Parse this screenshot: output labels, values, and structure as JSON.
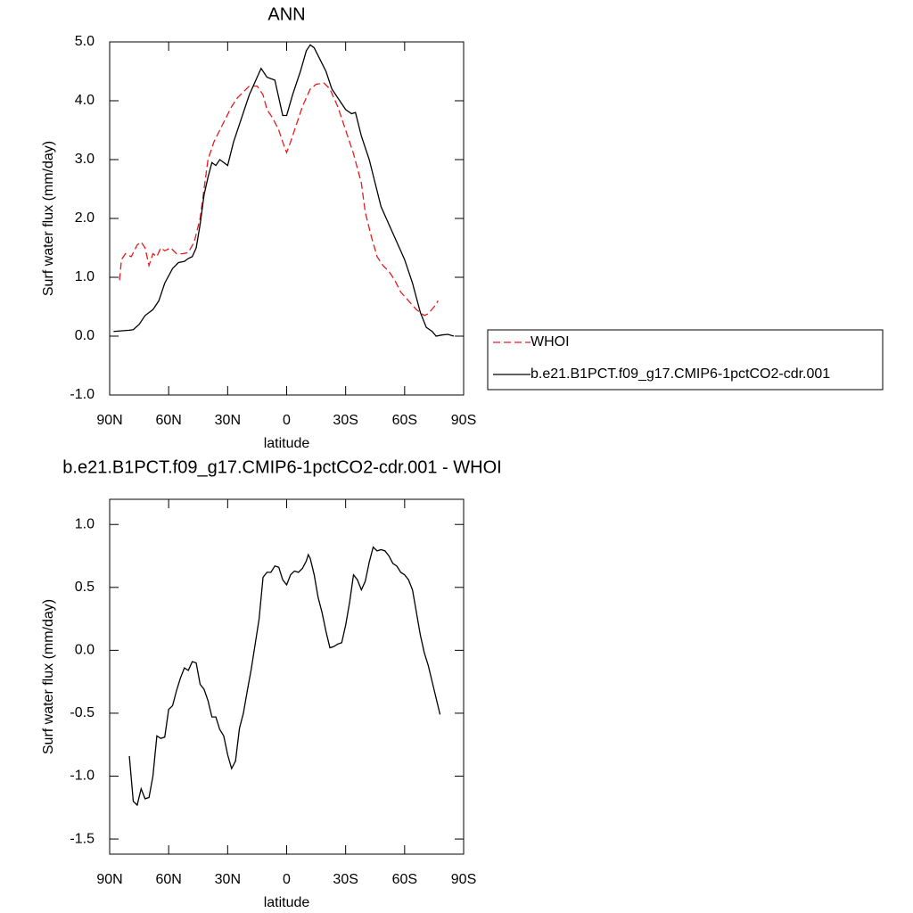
{
  "chart_data": [
    {
      "type": "line",
      "title": "ANN",
      "xlabel": "latitude",
      "ylabel": "Surf water flux (mm/day)",
      "xlim": [
        90,
        -90
      ],
      "xticks": [
        {
          "value": 90,
          "label": "90N"
        },
        {
          "value": 60,
          "label": "60N"
        },
        {
          "value": 30,
          "label": "30N"
        },
        0,
        {
          "value": -30,
          "label": "30S"
        },
        {
          "value": -60,
          "label": "60S"
        },
        {
          "value": -90,
          "label": "90S"
        }
      ],
      "ylim": [
        -1,
        5
      ],
      "yticks": [
        {
          "value": 5,
          "label": "5.0"
        },
        {
          "value": 4,
          "label": "4.0"
        },
        {
          "value": 3,
          "label": "3.0"
        },
        {
          "value": 2,
          "label": "2.0"
        },
        {
          "value": 1,
          "label": "1.0"
        },
        {
          "value": 0,
          "label": "0.0"
        },
        {
          "value": -1,
          "label": "-1.0"
        }
      ],
      "legend": "outside-right",
      "series": [
        {
          "name": "WHOI",
          "color": "#e41a1c",
          "line_style": "dashed",
          "x": [
            85,
            84,
            82,
            79,
            76,
            74,
            72,
            70,
            68,
            66,
            64,
            62,
            59,
            56,
            53,
            50,
            47,
            44,
            42,
            40,
            37,
            34,
            31,
            28,
            25,
            22,
            19,
            15,
            12,
            10,
            7,
            4,
            1,
            0,
            -2,
            -5,
            -8,
            -12,
            -15,
            -19,
            -22,
            -26,
            -30,
            -34,
            -38,
            -40,
            -43,
            -46,
            -49,
            -52,
            -55,
            -58,
            -62,
            -66,
            -70,
            -72,
            -75,
            -77
          ],
          "values": [
            0.95,
            1.3,
            1.4,
            1.35,
            1.55,
            1.6,
            1.5,
            1.2,
            1.4,
            1.35,
            1.5,
            1.45,
            1.5,
            1.4,
            1.4,
            1.42,
            1.6,
            2.0,
            2.5,
            3.0,
            3.3,
            3.5,
            3.7,
            3.9,
            4.05,
            4.15,
            4.25,
            4.25,
            4.1,
            3.85,
            3.7,
            3.5,
            3.2,
            3.12,
            3.3,
            3.6,
            3.9,
            4.2,
            4.28,
            4.3,
            4.2,
            3.9,
            3.5,
            3.1,
            2.6,
            2.1,
            1.7,
            1.35,
            1.2,
            1.1,
            0.95,
            0.75,
            0.6,
            0.45,
            0.35,
            0.38,
            0.5,
            0.6
          ]
        },
        {
          "name": "b.e21.B1PCT.f09_g17.CMIP6-1pctCO2-cdr.001",
          "color": "#000000",
          "line_style": "solid",
          "x": [
            88,
            80,
            78,
            75,
            72,
            68,
            65,
            62,
            58,
            55,
            52,
            50,
            48,
            46,
            44,
            42,
            40,
            38,
            36,
            34,
            30,
            27,
            23,
            19,
            15,
            13,
            10,
            6,
            2,
            0,
            -3,
            -7,
            -10,
            -12,
            -14,
            -17,
            -20,
            -23,
            -27,
            -30,
            -33,
            -35,
            -38,
            -42,
            -45,
            -48,
            -52,
            -56,
            -60,
            -64,
            -68,
            -71,
            -74,
            -76,
            -79,
            -82,
            -85
          ],
          "values": [
            0.08,
            0.1,
            0.11,
            0.2,
            0.35,
            0.45,
            0.6,
            0.9,
            1.15,
            1.25,
            1.27,
            1.32,
            1.35,
            1.5,
            1.9,
            2.4,
            2.7,
            2.95,
            2.9,
            3.0,
            2.9,
            3.3,
            3.7,
            4.1,
            4.4,
            4.55,
            4.4,
            4.35,
            3.75,
            3.75,
            4.1,
            4.5,
            4.85,
            4.95,
            4.9,
            4.7,
            4.5,
            4.2,
            4.0,
            3.85,
            3.78,
            3.8,
            3.4,
            3.0,
            2.6,
            2.2,
            1.9,
            1.6,
            1.3,
            0.9,
            0.4,
            0.15,
            0.08,
            0.0,
            0.02,
            0.03,
            0.0
          ]
        }
      ]
    },
    {
      "type": "line",
      "title": "b.e21.B1PCT.f09_g17.CMIP6-1pctCO2-cdr.001 - WHOI",
      "xlabel": "latitude",
      "ylabel": "Surf water flux (mm/day)",
      "xlim": [
        90,
        -90
      ],
      "xticks": [
        {
          "value": 90,
          "label": "90N"
        },
        {
          "value": 60,
          "label": "60N"
        },
        {
          "value": 30,
          "label": "30N"
        },
        0,
        {
          "value": -30,
          "label": "30S"
        },
        {
          "value": -60,
          "label": "60S"
        },
        {
          "value": -90,
          "label": "90S"
        }
      ],
      "ylim": [
        -1.62,
        1.2
      ],
      "yticks": [
        {
          "value": 1,
          "label": "1.0"
        },
        {
          "value": 0.5,
          "label": "0.5"
        },
        {
          "value": 0,
          "label": "0.0"
        },
        {
          "value": -0.5,
          "label": "-0.5"
        },
        {
          "value": -1,
          "label": "-1.0"
        },
        {
          "value": -1.5,
          "label": "-1.5"
        }
      ],
      "series": [
        {
          "color": "#000000",
          "line_style": "solid",
          "x": [
            80,
            78,
            76,
            74,
            72,
            70,
            68,
            66,
            64,
            62,
            60,
            58,
            56,
            54,
            52,
            50,
            48,
            46,
            44,
            42,
            40,
            38,
            36,
            34,
            32,
            30,
            28,
            26,
            24,
            22,
            20,
            18,
            16,
            14,
            12,
            10,
            8,
            6,
            4,
            2,
            0,
            -2,
            -4,
            -6,
            -8,
            -10,
            -11,
            -12,
            -14,
            -16,
            -18,
            -20,
            -22,
            -24,
            -26,
            -28,
            -30,
            -32,
            -34,
            -36,
            -38,
            -40,
            -42,
            -44,
            -46,
            -48,
            -50,
            -52,
            -54,
            -56,
            -58,
            -60,
            -62,
            -64,
            -66,
            -68,
            -70,
            -72,
            -74,
            -76,
            -78
          ],
          "values": [
            -0.84,
            -1.2,
            -1.23,
            -1.1,
            -1.18,
            -1.17,
            -1.0,
            -0.68,
            -0.7,
            -0.69,
            -0.47,
            -0.44,
            -0.32,
            -0.22,
            -0.14,
            -0.16,
            -0.09,
            -0.1,
            -0.27,
            -0.31,
            -0.4,
            -0.53,
            -0.53,
            -0.63,
            -0.68,
            -0.83,
            -0.94,
            -0.88,
            -0.62,
            -0.5,
            -0.32,
            -0.15,
            0.05,
            0.25,
            0.58,
            0.62,
            0.62,
            0.67,
            0.66,
            0.56,
            0.52,
            0.6,
            0.63,
            0.62,
            0.65,
            0.71,
            0.76,
            0.73,
            0.6,
            0.42,
            0.3,
            0.15,
            0.02,
            0.03,
            0.05,
            0.06,
            0.2,
            0.38,
            0.6,
            0.56,
            0.48,
            0.55,
            0.7,
            0.82,
            0.79,
            0.8,
            0.79,
            0.75,
            0.69,
            0.67,
            0.62,
            0.6,
            0.56,
            0.48,
            0.3,
            0.12,
            -0.02,
            -0.12,
            -0.25,
            -0.38,
            -0.51
          ]
        }
      ]
    }
  ]
}
